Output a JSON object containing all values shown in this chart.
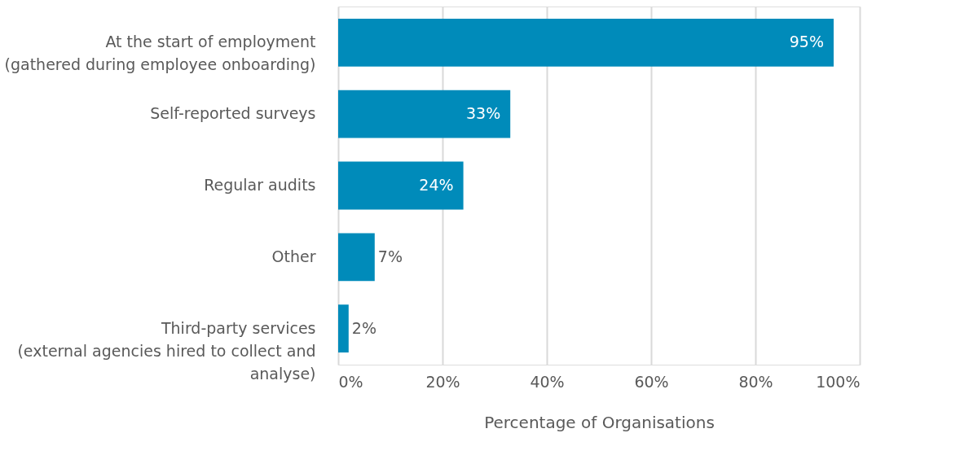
{
  "chart_data": {
    "type": "bar",
    "orientation": "horizontal",
    "xlabel": "Percentage of Organisations",
    "categories": [
      "At the start of employment\n(gathered during employee onboarding)",
      "Self-reported surveys",
      "Regular audits",
      "Other",
      "Third-party services\n(external agencies hired to collect and\nanalyse)"
    ],
    "values": [
      95,
      33,
      24,
      7,
      2
    ],
    "value_labels": [
      "95%",
      "33%",
      "24%",
      "7%",
      "2%"
    ],
    "color": "#008bba",
    "xlim": [
      0,
      100
    ],
    "xticks": [
      {
        "value": 0,
        "label": "0%"
      },
      {
        "value": 20,
        "label": "20%"
      },
      {
        "value": 40,
        "label": "40%"
      },
      {
        "value": 60,
        "label": "60%"
      },
      {
        "value": 80,
        "label": "80%"
      },
      {
        "value": 100,
        "label": "100%"
      }
    ],
    "grid": "x"
  }
}
